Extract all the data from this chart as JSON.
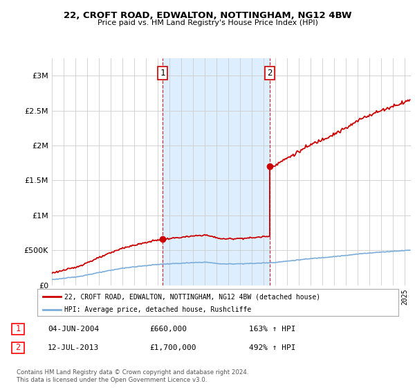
{
  "title1": "22, CROFT ROAD, EDWALTON, NOTTINGHAM, NG12 4BW",
  "title2": "Price paid vs. HM Land Registry's House Price Index (HPI)",
  "sale1_date": "04-JUN-2004",
  "sale1_price": 660000,
  "sale1_pct": "163%",
  "sale2_date": "12-JUL-2013",
  "sale2_price": 1700000,
  "sale2_pct": "492%",
  "legend_label1": "22, CROFT ROAD, EDWALTON, NOTTINGHAM, NG12 4BW (detached house)",
  "legend_label2": "HPI: Average price, detached house, Rushcliffe",
  "footer": "Contains HM Land Registry data © Crown copyright and database right 2024.\nThis data is licensed under the Open Government Licence v3.0.",
  "sale1_color": "#cc0000",
  "sale2_color": "#cc0000",
  "hpi_color": "#7aaddb",
  "property_color": "#cc0000",
  "shade_color": "#ddeeff",
  "background_color": "#ffffff",
  "ylim": [
    0,
    3250000
  ],
  "yticks": [
    0,
    500000,
    1000000,
    1500000,
    2000000,
    2500000,
    3000000
  ],
  "xlim_start": 1995.0,
  "xlim_end": 2025.5,
  "sale1_year": 2004,
  "sale1_month": 6,
  "sale2_year": 2013,
  "sale2_month": 7
}
